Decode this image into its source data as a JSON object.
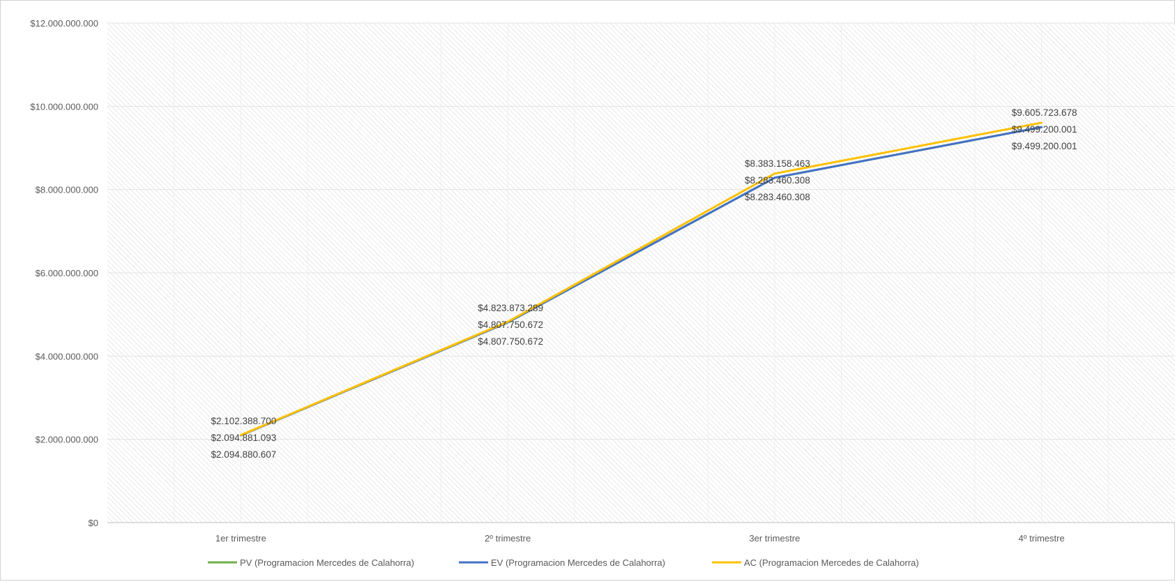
{
  "chart_data": {
    "type": "line",
    "categories": [
      "1er trimestre",
      "2º trimestre",
      "3er trimestre",
      "4º trimestre"
    ],
    "series": [
      {
        "name": "PV (Programacion Mercedes de Calahorra)",
        "color": "#70AD47",
        "values": [
          2094880607,
          4807750672,
          8283460308,
          9499200001
        ],
        "labels": [
          "$2.094.880.607",
          "$4.807.750.672",
          "$8.283.460.308",
          "$9.499.200.001"
        ]
      },
      {
        "name": "EV (Programacion Mercedes de Calahorra)",
        "color": "#4472C4",
        "values": [
          2094881093,
          4807750672,
          8283460308,
          9499200001
        ],
        "labels": [
          "$2.094.881.093",
          "$4.807.750.672",
          "$8.283.460.308",
          "$9.499.200.001"
        ]
      },
      {
        "name": "AC (Programacion Mercedes de Calahorra)",
        "color": "#FFC000",
        "values": [
          2102388700,
          4823873289,
          8383158463,
          9605723678
        ],
        "labels": [
          "$2.102.388.700",
          "$4.823.873.289",
          "$8.383.158.463",
          "$9.605.723.678"
        ]
      }
    ],
    "ylim": [
      0,
      12000000000
    ],
    "yticks": [
      0,
      2000000000,
      4000000000,
      6000000000,
      8000000000,
      10000000000,
      12000000000
    ],
    "ytick_labels": [
      "$0",
      "$2.000.000.000",
      "$4.000.000.000",
      "$6.000.000.000",
      "$8.000.000.000",
      "$10.000.000.000",
      "$12.000.000.000"
    ],
    "grid": true,
    "legend_position": "bottom",
    "title": "",
    "xlabel": "",
    "ylabel": ""
  }
}
